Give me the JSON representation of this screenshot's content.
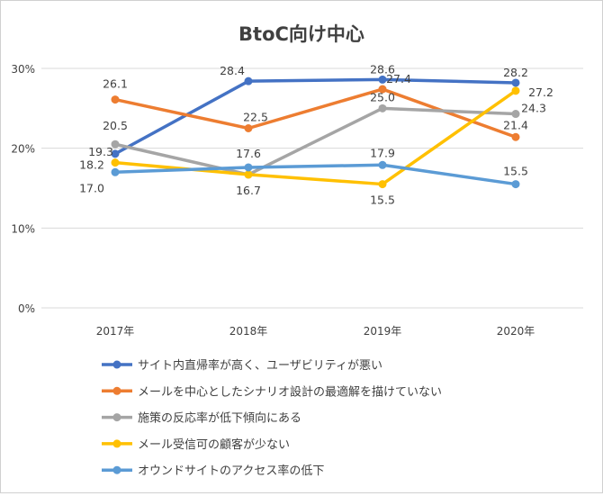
{
  "chart_data": {
    "type": "line",
    "title": "BtoC向け中心",
    "categories": [
      "2017年",
      "2018年",
      "2019年",
      "2020年"
    ],
    "ylim": [
      0,
      30
    ],
    "yticks": [
      0,
      10,
      20,
      30
    ],
    "ytick_labels": [
      "0%",
      "10%",
      "20%",
      "30%"
    ],
    "grid": true,
    "legend_position": "bottom",
    "series": [
      {
        "name": "サイト内直帰率が高く、ユーザビリティが悪い",
        "color": "#4472C4",
        "values": [
          19.3,
          28.4,
          28.6,
          28.2
        ]
      },
      {
        "name": "メールを中心としたシナリオ設計の最適解を描けていない",
        "color": "#ED7D31",
        "values": [
          26.1,
          22.5,
          27.4,
          21.4
        ]
      },
      {
        "name": "施策の反応率が低下傾向にある",
        "color": "#A5A5A5",
        "values": [
          20.5,
          16.7,
          25.0,
          24.3
        ]
      },
      {
        "name": "メール受信可の顧客が少ない",
        "color": "#FFC000",
        "values": [
          18.2,
          16.7,
          15.5,
          27.2
        ]
      },
      {
        "name": "オウンドサイトのアクセス率の低下",
        "color": "#5B9BD5",
        "values": [
          17.0,
          17.6,
          17.9,
          15.5
        ]
      }
    ]
  }
}
